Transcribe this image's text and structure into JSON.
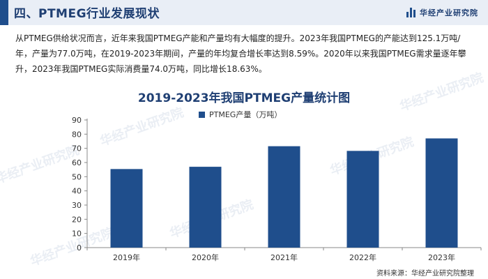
{
  "header": {
    "title": "四、PTMEG行业发展现状",
    "logo_text": "华经产业研究院"
  },
  "intro_text": "从PTMEG供给状况而言，近年来我国PTMEG产能和产量均有大幅度的提升。2023年我国PTMEG的产能达到125.1万吨/年，产量为77.0万吨，在2019-2023年期间，产量的年均复合增长率达到8.59%。2020年以来我国PTMEG需求量逐年攀升，2023年我国PTMEG实际消费量74.0万吨，同比增长18.63%。",
  "watermark_text": "华经产业研究院",
  "source_text": "资料来源：华经产业研究院整理",
  "colors": {
    "bar": "#1f4e8c",
    "title": "#1f3f73",
    "header_bg": "#e9eef6"
  },
  "chart_data": {
    "type": "bar",
    "title": "2019-2023年我国PTMEG产量统计图",
    "categories": [
      "2019年",
      "2020年",
      "2021年",
      "2022年",
      "2023年"
    ],
    "series": [
      {
        "name": "PTMEG产量（万吨）",
        "values": [
          55.4,
          57.0,
          71.5,
          68.2,
          77.0
        ]
      }
    ],
    "ylim": [
      0,
      90
    ],
    "yticks": [
      0,
      10,
      20,
      30,
      40,
      50,
      60,
      70,
      80,
      90
    ],
    "legend": "top-center",
    "grid": false
  }
}
